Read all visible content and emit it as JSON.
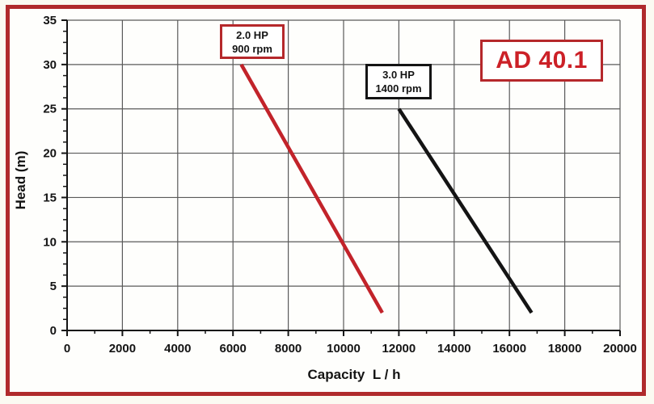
{
  "frame": {
    "border_color": "#b02a2c",
    "background": "#fefefc"
  },
  "badge": {
    "label": "AD 40.1",
    "text_color": "#cc2027",
    "border_color": "#b5282b"
  },
  "chart_data": {
    "type": "line",
    "title": "",
    "xlabel": "Capacity  L / h",
    "ylabel": "Head (m)",
    "xlim": [
      0,
      20000
    ],
    "ylim": [
      0,
      35
    ],
    "x_ticks": [
      0,
      2000,
      4000,
      6000,
      8000,
      10000,
      12000,
      14000,
      16000,
      18000,
      20000
    ],
    "y_ticks": [
      0,
      5,
      10,
      15,
      20,
      25,
      30,
      35
    ],
    "x_major_step": 2000,
    "x_minor_step": 1000,
    "y_major_step": 5,
    "y_minor_step": 1.25,
    "grid": "major gridlines on, both axes",
    "grid_color": "#5a5a5a",
    "axis_color": "#141414",
    "legend_position": "inline annotation boxes above each curve",
    "series": [
      {
        "name": "2.0 HP 900 rpm",
        "label_lines": [
          "2.0 HP",
          "900 rpm"
        ],
        "color": "#c2232a",
        "points": [
          [
            6300,
            30
          ],
          [
            11400,
            2
          ]
        ]
      },
      {
        "name": "3.0 HP 1400 rpm",
        "label_lines": [
          "3.0 HP",
          "1400 rpm"
        ],
        "color": "#141414",
        "points": [
          [
            12000,
            25
          ],
          [
            16800,
            2
          ]
        ]
      }
    ]
  }
}
